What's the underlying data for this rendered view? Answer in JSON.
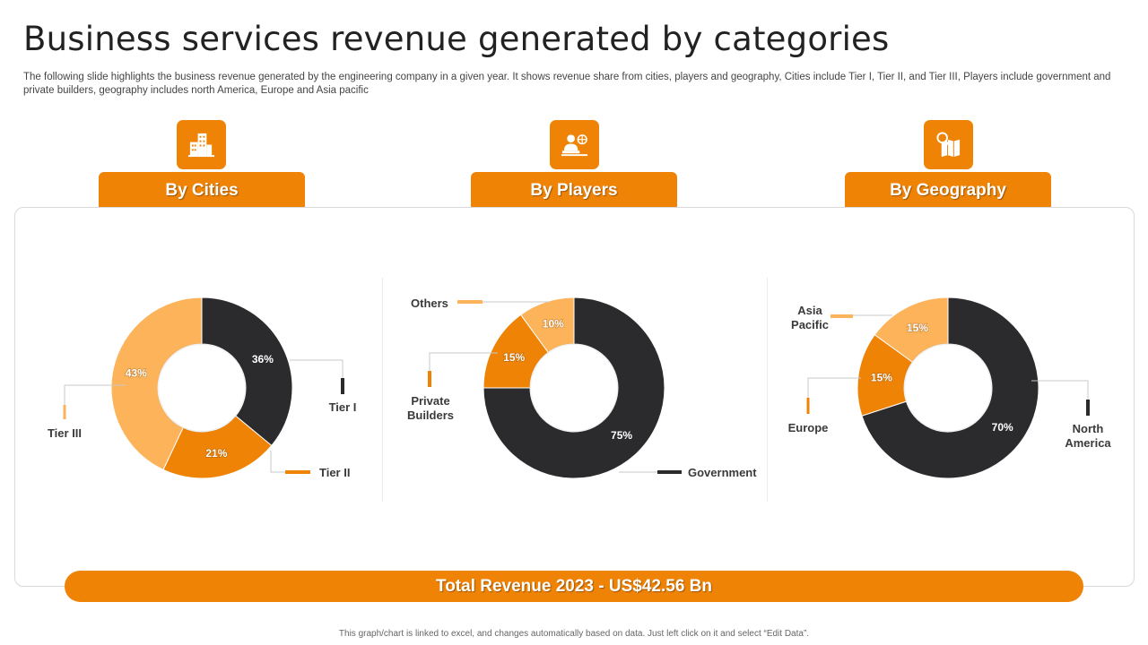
{
  "slide": {
    "title": "Business services revenue generated by categories",
    "subtitle": "The following slide highlights the business revenue generated by the engineering company in a given year.  It shows revenue share from cities, players and geography, Cities include Tier I, Tier II,  and Tier III,  Players include government and private builders, geography includes north America, Europe and Asia pacific",
    "total_revenue": "Total Revenue 2023 - US$42.56 Bn",
    "footnote": "This graph/chart is linked to excel, and changes automatically based on data. Just left click on it and select “Edit Data”."
  },
  "tabs": [
    {
      "label": "By Cities",
      "icon": "buildings-icon"
    },
    {
      "label": "By Players",
      "icon": "builder-globe-icon"
    },
    {
      "label": "By Geography",
      "icon": "map-search-icon"
    }
  ],
  "colors": {
    "accent": "#ef8306",
    "dark": "#2b2a2d",
    "light_orange": "#fcb35a",
    "panel_border": "#d9d9d9"
  },
  "chart_data": [
    {
      "type": "pie",
      "title": "By Cities",
      "slices": [
        {
          "label": "Tier I",
          "value": 36,
          "display": "36%",
          "color": "#2b2a2d"
        },
        {
          "label": "Tier II",
          "value": 21,
          "display": "21%",
          "color": "#ef8306"
        },
        {
          "label": "Tier III",
          "value": 43,
          "display": "43%",
          "color": "#fcb35a"
        }
      ]
    },
    {
      "type": "pie",
      "title": "By Players",
      "slices": [
        {
          "label": "Government",
          "value": 75,
          "display": "75%",
          "color": "#2b2a2d"
        },
        {
          "label": "Private Builders",
          "value": 15,
          "display": "15%",
          "color": "#ef8306"
        },
        {
          "label": "Others",
          "value": 10,
          "display": "10%",
          "color": "#fcb35a"
        }
      ]
    },
    {
      "type": "pie",
      "title": "By Geography",
      "slices": [
        {
          "label": "North America",
          "value": 70,
          "display": "70%",
          "color": "#2b2a2d"
        },
        {
          "label": "Europe",
          "value": 15,
          "display": "15%",
          "color": "#ef8306"
        },
        {
          "label": "Asia Pacific",
          "value": 15,
          "display": "15%",
          "color": "#fcb35a"
        }
      ]
    }
  ]
}
